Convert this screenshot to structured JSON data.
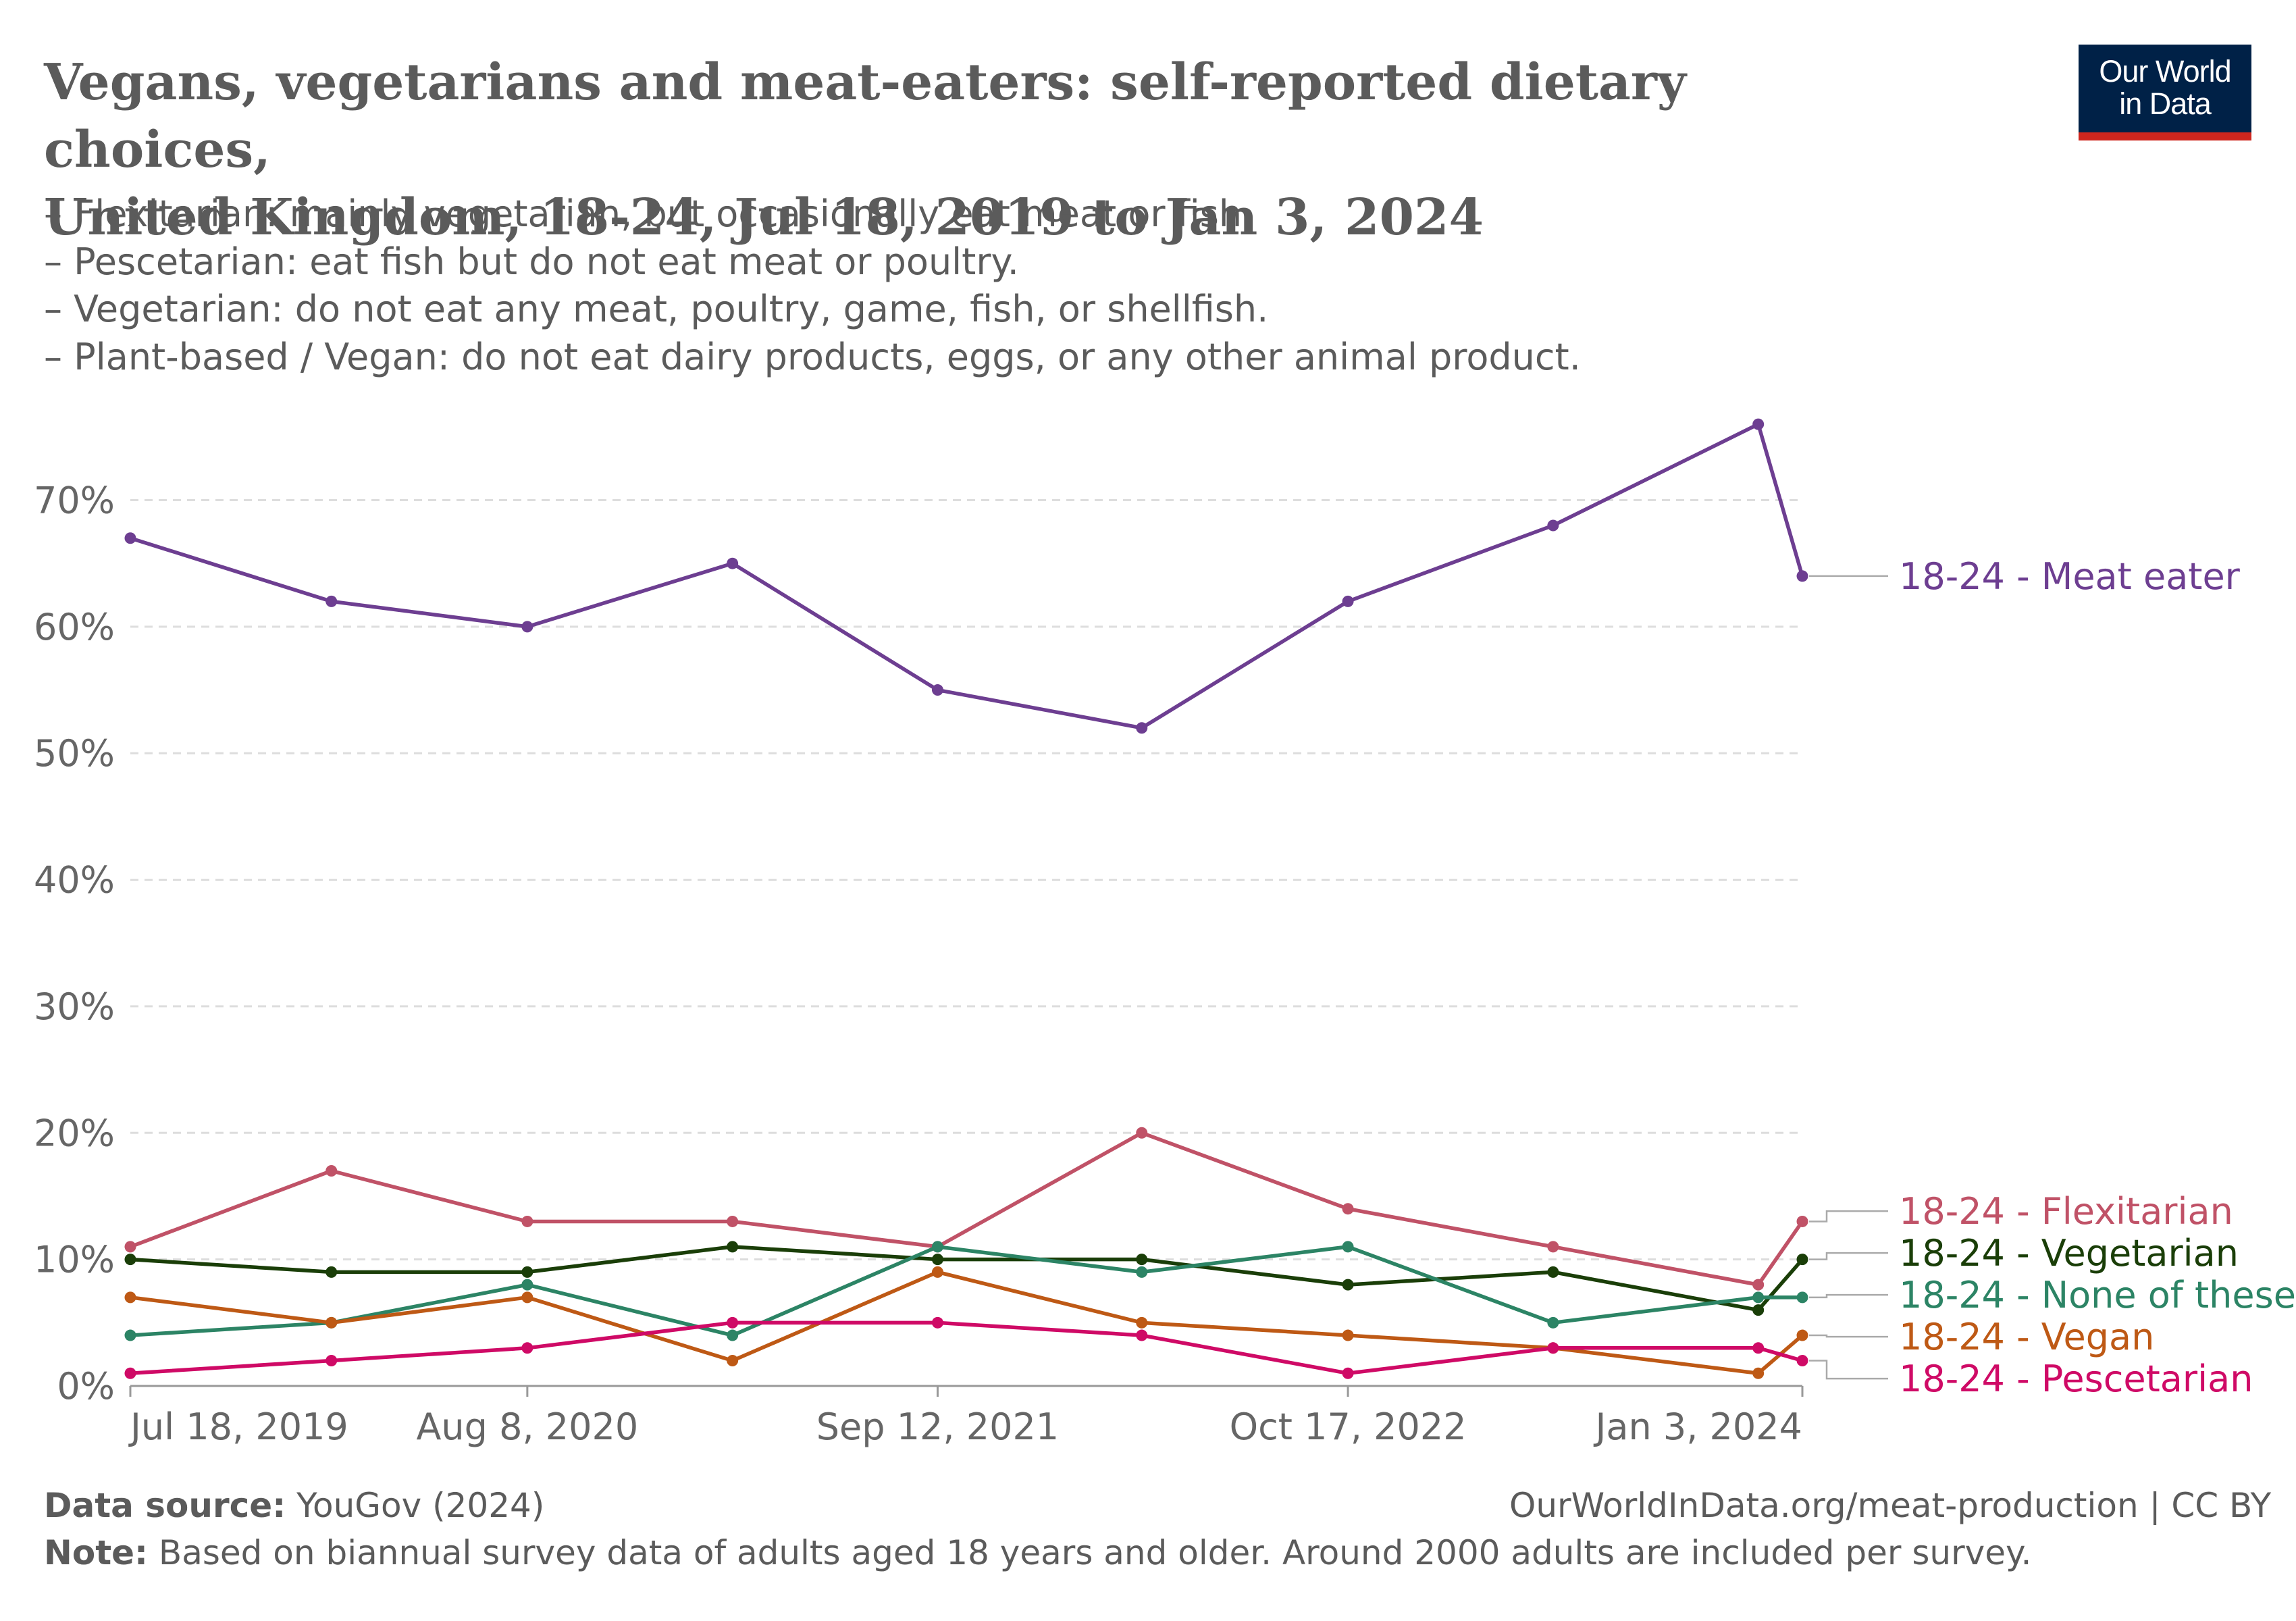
{
  "header": {
    "title_lines": [
      "Vegans, vegetarians and meat-eaters: self-reported dietary choices,",
      "United Kingdom, 18-24, Jul 18, 2019 to Jan 3, 2024"
    ],
    "subtitle_lines": [
      "– Flexitarian: mainly vegetarian, but occasionally eat meat or fish.",
      "– Pescetarian: eat fish but do not eat meat or poultry.",
      "– Vegetarian: do not eat any meat, poultry, game, fish, or shellfish.",
      "– Plant-based / Vegan: do not eat dairy products, eggs, or any other animal product."
    ],
    "logo_line1": "Our World",
    "logo_line2": "in Data"
  },
  "chart_data": {
    "type": "line",
    "title": "Vegans, vegetarians and meat-eaters: self-reported dietary choices, United Kingdom, 18-24, Jul 18, 2019 to Jan 3, 2024",
    "x": [
      "2019-07-18",
      "2020-01-30",
      "2020-08-08",
      "2021-02-24",
      "2021-09-12",
      "2022-03-30",
      "2022-10-17",
      "2023-05-05",
      "2023-11-21",
      "2024-01-03"
    ],
    "x_tick_labels": [
      "Jul 18, 2019",
      "Aug 8, 2020",
      "Sep 12, 2021",
      "Oct 17, 2022",
      "Jan 3, 2024"
    ],
    "x_tick_dates": [
      "2019-07-18",
      "2020-08-08",
      "2021-09-12",
      "2022-10-17",
      "2024-01-03"
    ],
    "y_tick_labels": [
      "0%",
      "10%",
      "20%",
      "30%",
      "40%",
      "50%",
      "60%",
      "70%"
    ],
    "y_ticks": [
      0,
      10,
      20,
      30,
      40,
      50,
      60,
      70
    ],
    "ylim": [
      0,
      70
    ],
    "grid": true,
    "legend": "right, end-of-line labels",
    "series": [
      {
        "name": "18-24 - Meat eater",
        "color": "#6d3e91",
        "values": [
          67,
          62,
          60,
          65,
          55,
          52,
          62,
          68,
          76,
          64
        ]
      },
      {
        "name": "18-24 - Flexitarian",
        "color": "#c05267",
        "values": [
          11,
          17,
          13,
          13,
          11,
          20,
          14,
          11,
          8,
          13
        ]
      },
      {
        "name": "18-24 - Vegetarian",
        "color": "#1a3e08",
        "values": [
          10,
          9,
          9,
          11,
          10,
          10,
          8,
          9,
          6,
          10
        ]
      },
      {
        "name": "18-24 - None of these",
        "color": "#2c8465",
        "values": [
          4,
          5,
          8,
          4,
          11,
          9,
          11,
          5,
          7,
          7
        ]
      },
      {
        "name": "18-24 - Vegan",
        "color": "#be5915",
        "values": [
          7,
          5,
          7,
          2,
          9,
          5,
          4,
          3,
          1,
          4
        ]
      },
      {
        "name": "18-24 - Pescetarian",
        "color": "#cf0a66",
        "values": [
          1,
          2,
          3,
          5,
          5,
          4,
          1,
          3,
          3,
          2
        ]
      }
    ]
  },
  "footer": {
    "source_label": "Data source:",
    "source_text": "YouGov (2024)",
    "url_text": "OurWorldInData.org/meat-production | CC BY",
    "note_label": "Note:",
    "note_text": "Based on biannual survey data of adults aged 18 years and older. Around 2000 adults are included per survey."
  }
}
